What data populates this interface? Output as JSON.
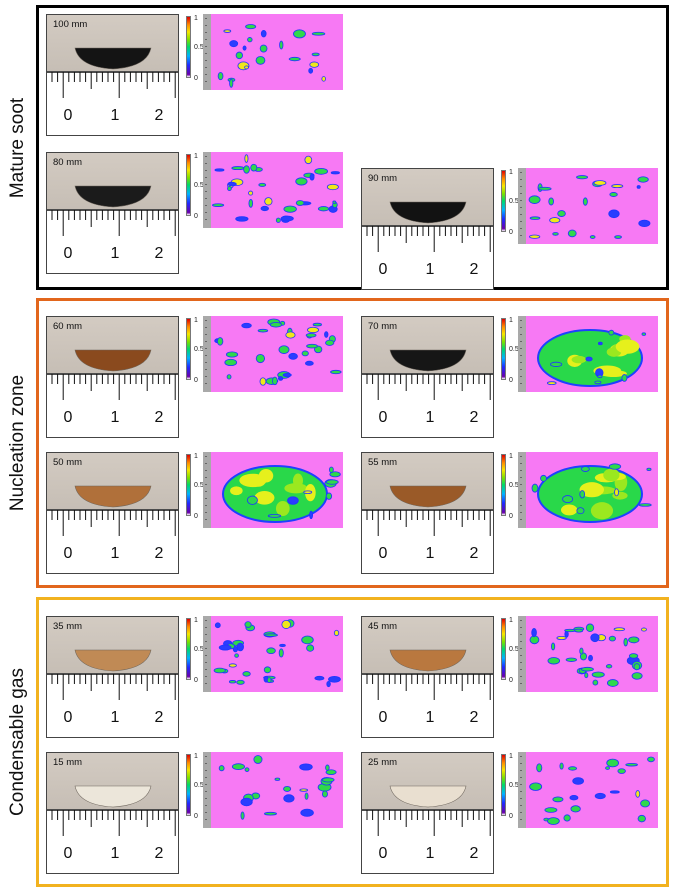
{
  "groups": [
    {
      "key": "mature",
      "label": "Mature soot",
      "border_color": "#000000"
    },
    {
      "key": "nucleation",
      "label": "Nucleation zone",
      "border_color": "#e2661c"
    },
    {
      "key": "condensable",
      "label": "Condensable gas",
      "border_color": "#f2b21f"
    }
  ],
  "colorbar_ticks": [
    "1",
    "0.5",
    "0"
  ],
  "ruler_numbers": [
    "0",
    "1",
    "2"
  ],
  "samples": [
    {
      "id": "s100",
      "label": "100 mm",
      "group": "mature",
      "specimen_color": "#141414",
      "map_density": "sparse"
    },
    {
      "id": "s80",
      "label": "80 mm",
      "group": "mature",
      "specimen_color": "#1b1b1b",
      "map_density": "moderate"
    },
    {
      "id": "s90",
      "label": "90 mm",
      "group": "mature",
      "specimen_color": "#121212",
      "map_density": "sparse"
    },
    {
      "id": "s60",
      "label": "60 mm",
      "group": "nucleation",
      "specimen_color": "#8a4a1e",
      "map_density": "moderate"
    },
    {
      "id": "s70",
      "label": "70 mm",
      "group": "nucleation",
      "specimen_color": "#161616",
      "map_density": "dense"
    },
    {
      "id": "s50",
      "label": "50 mm",
      "group": "nucleation",
      "specimen_color": "#b0703a",
      "map_density": "dense"
    },
    {
      "id": "s55",
      "label": "55 mm",
      "group": "nucleation",
      "specimen_color": "#9a5a28",
      "map_density": "dense"
    },
    {
      "id": "s35",
      "label": "35 mm",
      "group": "condensable",
      "specimen_color": "#c08a55",
      "map_density": "moderate"
    },
    {
      "id": "s45",
      "label": "45 mm",
      "group": "condensable",
      "specimen_color": "#b9783f",
      "map_density": "moderate"
    },
    {
      "id": "s15",
      "label": "15 mm",
      "group": "condensable",
      "specimen_color": "#ece6da",
      "map_density": "sparse"
    },
    {
      "id": "s25",
      "label": "25 mm",
      "group": "condensable",
      "specimen_color": "#e9dfd0",
      "map_density": "sparse"
    }
  ]
}
